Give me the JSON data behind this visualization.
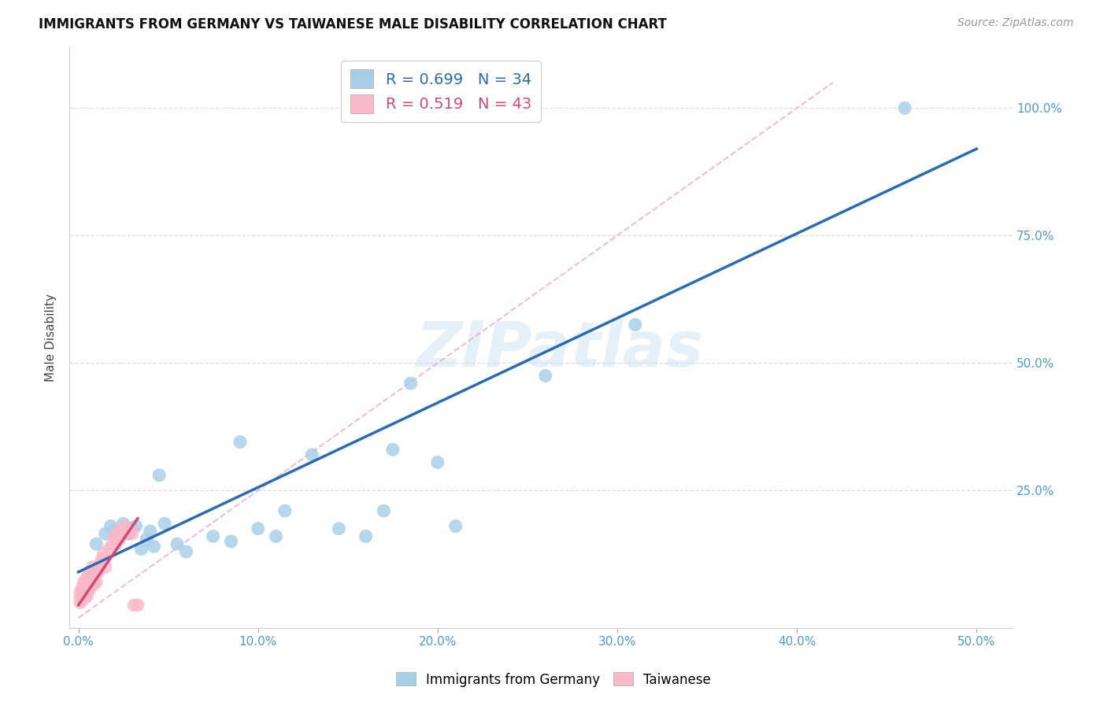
{
  "title": "IMMIGRANTS FROM GERMANY VS TAIWANESE MALE DISABILITY CORRELATION CHART",
  "source": "Source: ZipAtlas.com",
  "ylabel": "Male Disability",
  "xlim": [
    -0.005,
    0.52
  ],
  "ylim": [
    -0.02,
    1.12
  ],
  "xticks": [
    0.0,
    0.1,
    0.2,
    0.3,
    0.4,
    0.5
  ],
  "xtick_labels": [
    "0.0%",
    "10.0%",
    "20.0%",
    "30.0%",
    "40.0%",
    "50.0%"
  ],
  "ytick_gridlines": [
    0.25,
    0.5,
    0.75,
    1.0
  ],
  "ytick_right_vals": [
    0.25,
    0.5,
    0.75,
    1.0
  ],
  "ytick_right_labels": [
    "25.0%",
    "50.0%",
    "75.0%",
    "100.0%"
  ],
  "legend_blue_r": "0.699",
  "legend_blue_n": "34",
  "legend_pink_r": "0.519",
  "legend_pink_n": "43",
  "legend_blue_label": "Immigrants from Germany",
  "legend_pink_label": "Taiwanese",
  "watermark": "ZIPatlas",
  "blue_scatter_x": [
    0.01,
    0.015,
    0.018,
    0.02,
    0.022,
    0.025,
    0.028,
    0.03,
    0.032,
    0.035,
    0.038,
    0.04,
    0.042,
    0.045,
    0.048,
    0.055,
    0.06,
    0.075,
    0.085,
    0.09,
    0.1,
    0.11,
    0.115,
    0.13,
    0.145,
    0.16,
    0.17,
    0.175,
    0.185,
    0.2,
    0.21,
    0.26,
    0.31,
    0.46
  ],
  "blue_scatter_y": [
    0.145,
    0.165,
    0.18,
    0.17,
    0.155,
    0.185,
    0.165,
    0.175,
    0.18,
    0.135,
    0.155,
    0.17,
    0.14,
    0.28,
    0.185,
    0.145,
    0.13,
    0.16,
    0.15,
    0.345,
    0.175,
    0.16,
    0.21,
    0.32,
    0.175,
    0.16,
    0.21,
    0.33,
    0.46,
    0.305,
    0.18,
    0.475,
    0.575,
    1.0
  ],
  "pink_scatter_x": [
    0.001,
    0.001,
    0.001,
    0.002,
    0.002,
    0.002,
    0.003,
    0.003,
    0.003,
    0.004,
    0.004,
    0.004,
    0.005,
    0.005,
    0.005,
    0.006,
    0.006,
    0.007,
    0.007,
    0.008,
    0.008,
    0.009,
    0.009,
    0.01,
    0.01,
    0.011,
    0.012,
    0.013,
    0.014,
    0.015,
    0.017,
    0.019,
    0.02,
    0.021,
    0.022,
    0.023,
    0.025,
    0.026,
    0.028,
    0.029,
    0.03,
    0.031,
    0.033
  ],
  "pink_scatter_y": [
    0.03,
    0.04,
    0.05,
    0.035,
    0.05,
    0.06,
    0.04,
    0.055,
    0.07,
    0.04,
    0.06,
    0.075,
    0.045,
    0.065,
    0.08,
    0.055,
    0.09,
    0.06,
    0.08,
    0.065,
    0.1,
    0.07,
    0.085,
    0.07,
    0.09,
    0.09,
    0.105,
    0.115,
    0.125,
    0.1,
    0.135,
    0.145,
    0.16,
    0.145,
    0.17,
    0.155,
    0.175,
    0.18,
    0.165,
    0.17,
    0.165,
    0.025,
    0.025
  ],
  "blue_line_x": [
    0.0,
    0.5
  ],
  "blue_line_y": [
    0.09,
    0.92
  ],
  "pink_line_x": [
    0.0,
    0.033
  ],
  "pink_line_y": [
    0.025,
    0.195
  ],
  "pink_dash_line_x": [
    0.0,
    0.42
  ],
  "pink_dash_line_y": [
    0.0,
    1.05
  ],
  "blue_color": "#a8cfe8",
  "blue_line_color": "#2b6cb0",
  "pink_color": "#f9b8c8",
  "pink_line_color": "#d44875",
  "pink_dashed_color": "#f0a0b8",
  "background_color": "#ffffff",
  "grid_color": "#dddddd",
  "tick_color": "#5599cc",
  "ylabel_color": "#444444"
}
